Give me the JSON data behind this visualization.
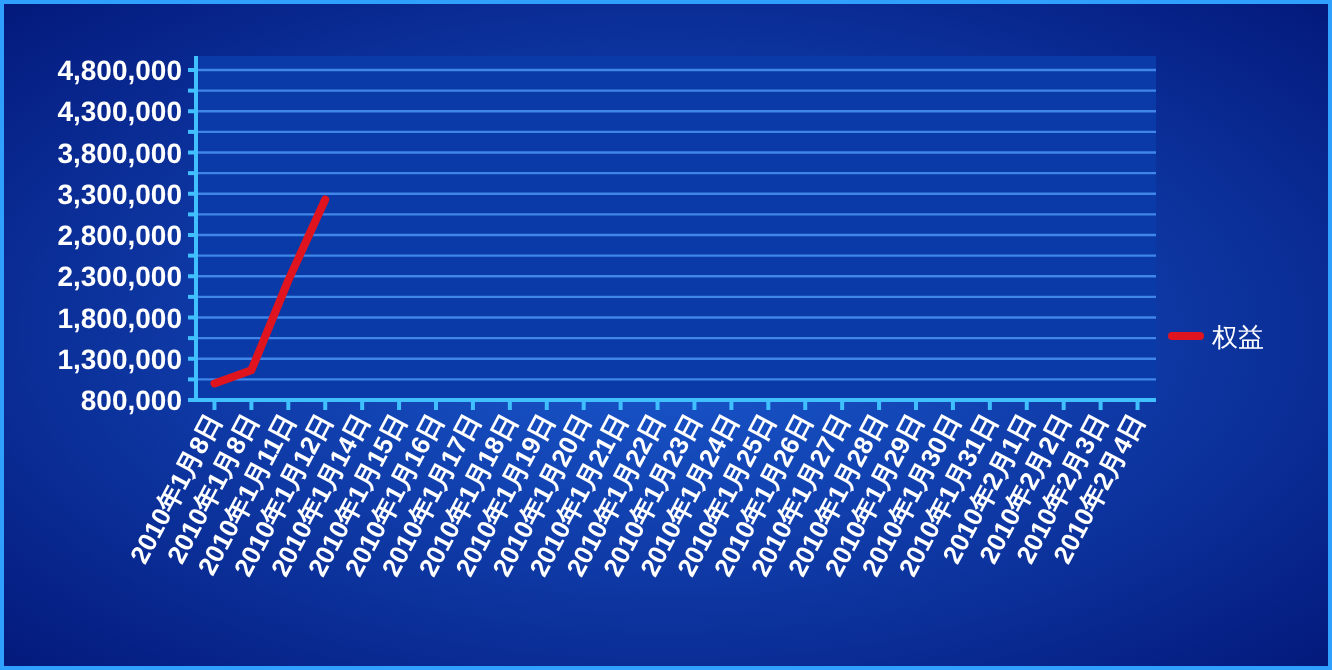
{
  "chart_data": {
    "type": "line",
    "categories": [
      "2010年1月8日",
      "2010年1月8日",
      "2010年1月11日",
      "2010年1月12日",
      "2010年1月14日",
      "2010年1月15日",
      "2010年1月16日",
      "2010年1月17日",
      "2010年1月18日",
      "2010年1月19日",
      "2010年1月20日",
      "2010年1月21日",
      "2010年1月22日",
      "2010年1月23日",
      "2010年1月24日",
      "2010年1月25日",
      "2010年1月26日",
      "2010年1月27日",
      "2010年1月28日",
      "2010年1月29日",
      "2010年1月30日",
      "2010年1月31日",
      "2010年2月1日",
      "2010年2月2日",
      "2010年2月3日",
      "2010年2月4日"
    ],
    "series": [
      {
        "name": "权益",
        "color": "#e0141e",
        "values": [
          1000000,
          1160000,
          2250000,
          3230000,
          null,
          null,
          null,
          null,
          null,
          null,
          null,
          null,
          null,
          null,
          null,
          null,
          null,
          null,
          null,
          null,
          null,
          null,
          null,
          null,
          null,
          null
        ]
      }
    ],
    "ylim": [
      800000,
      4800000
    ],
    "yticks": [
      {
        "value": 800000,
        "label": "800,000"
      },
      {
        "value": 1050000,
        "label": null
      },
      {
        "value": 1300000,
        "label": "1,300,000"
      },
      {
        "value": 1550000,
        "label": null
      },
      {
        "value": 1800000,
        "label": "1,800,000"
      },
      {
        "value": 2050000,
        "label": null
      },
      {
        "value": 2300000,
        "label": "2,300,000"
      },
      {
        "value": 2550000,
        "label": null
      },
      {
        "value": 2800000,
        "label": "2,800,000"
      },
      {
        "value": 3050000,
        "label": null
      },
      {
        "value": 3300000,
        "label": "3,300,000"
      },
      {
        "value": 3550000,
        "label": null
      },
      {
        "value": 3800000,
        "label": "3,800,000"
      },
      {
        "value": 4050000,
        "label": null
      },
      {
        "value": 4300000,
        "label": "4,300,000"
      },
      {
        "value": 4550000,
        "label": null
      },
      {
        "value": 4800000,
        "label": "4,800,000"
      }
    ],
    "grid": "y",
    "legend": "right",
    "marker": "none",
    "line_style": "solid"
  }
}
